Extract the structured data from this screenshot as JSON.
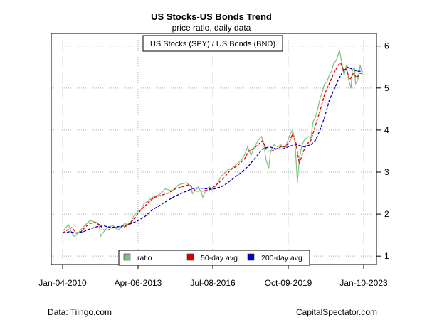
{
  "chart_data": {
    "type": "line",
    "title": "US Stocks-US Bonds Trend",
    "subtitle": "price ratio, daily data",
    "series_label": "US Stocks (SPY) / US Bonds (BND)",
    "xlabel": "",
    "ylabel": "",
    "x_ticks": [
      "Jan-04-2010",
      "Apr-06-2013",
      "Jul-08-2016",
      "Oct-09-2019",
      "Jan-10-2023"
    ],
    "x_range": [
      2010.0,
      2023.35
    ],
    "ylim": [
      0.8,
      6.3
    ],
    "y_ticks": [
      1,
      2,
      3,
      4,
      5,
      6
    ],
    "grid": true,
    "legend": {
      "position": "bottom",
      "entries": [
        {
          "name": "ratio",
          "color": "#7fbf7f",
          "marker": "filled-square"
        },
        {
          "name": "50-day avg",
          "color": "#e00000",
          "marker": "filled-square"
        },
        {
          "name": "200-day avg",
          "color": "#0000c0",
          "marker": "filled-square"
        }
      ]
    },
    "series": [
      {
        "name": "ratio",
        "color": "#7fbf7f",
        "style": "solid",
        "x": [
          2010.0,
          2010.1,
          2010.25,
          2010.4,
          2010.5,
          2010.6,
          2010.75,
          2010.9,
          2011.0,
          2011.2,
          2011.35,
          2011.5,
          2011.6,
          2011.65,
          2011.75,
          2011.9,
          2012.0,
          2012.2,
          2012.4,
          2012.55,
          2012.7,
          2012.8,
          2012.95,
          2013.1,
          2013.25,
          2013.4,
          2013.55,
          2013.7,
          2013.85,
          2014.0,
          2014.15,
          2014.3,
          2014.45,
          2014.6,
          2014.75,
          2014.9,
          2015.05,
          2015.2,
          2015.4,
          2015.6,
          2015.65,
          2015.75,
          2015.9,
          2016.05,
          2016.1,
          2016.25,
          2016.4,
          2016.5,
          2016.6,
          2016.75,
          2016.9,
          2017.0,
          2017.2,
          2017.4,
          2017.6,
          2017.8,
          2017.95,
          2018.05,
          2018.2,
          2018.35,
          2018.5,
          2018.65,
          2018.75,
          2018.85,
          2018.97,
          2019.05,
          2019.2,
          2019.35,
          2019.5,
          2019.6,
          2019.7,
          2019.8,
          2019.9,
          2020.0,
          2020.1,
          2020.17,
          2020.22,
          2020.3,
          2020.4,
          2020.5,
          2020.6,
          2020.7,
          2020.8,
          2020.85,
          2020.9,
          2021.0,
          2021.1,
          2021.2,
          2021.3,
          2021.4,
          2021.5,
          2021.6,
          2021.7,
          2021.8,
          2021.9,
          2022.0,
          2022.05,
          2022.15,
          2022.25,
          2022.35,
          2022.45,
          2022.55,
          2022.6,
          2022.7,
          2022.75,
          2022.85,
          2022.95,
          2023.05
        ],
        "values": [
          1.6,
          1.65,
          1.75,
          1.55,
          1.47,
          1.5,
          1.6,
          1.7,
          1.75,
          1.85,
          1.82,
          1.8,
          1.7,
          1.47,
          1.55,
          1.65,
          1.7,
          1.72,
          1.62,
          1.68,
          1.78,
          1.75,
          1.8,
          1.95,
          2.05,
          2.1,
          2.25,
          2.3,
          2.38,
          2.42,
          2.45,
          2.5,
          2.6,
          2.58,
          2.55,
          2.62,
          2.7,
          2.72,
          2.75,
          2.65,
          2.48,
          2.55,
          2.65,
          2.5,
          2.4,
          2.6,
          2.65,
          2.58,
          2.62,
          2.75,
          2.9,
          2.95,
          3.05,
          3.1,
          3.2,
          3.3,
          3.45,
          3.6,
          3.4,
          3.6,
          3.75,
          3.85,
          3.7,
          3.3,
          3.1,
          3.5,
          3.65,
          3.6,
          3.65,
          3.55,
          3.6,
          3.75,
          3.9,
          4.0,
          3.8,
          3.2,
          2.75,
          3.3,
          3.6,
          3.75,
          3.8,
          3.85,
          3.8,
          4.0,
          4.2,
          4.3,
          4.5,
          4.75,
          4.9,
          5.1,
          5.15,
          5.3,
          5.4,
          5.6,
          5.65,
          5.8,
          5.9,
          5.6,
          5.3,
          5.55,
          5.2,
          5.0,
          5.4,
          5.5,
          5.1,
          5.2,
          5.55,
          5.3
        ]
      },
      {
        "name": "50-day avg",
        "color": "#e00000",
        "style": "dashed",
        "x": [
          2010.0,
          2010.2,
          2010.4,
          2010.6,
          2010.8,
          2011.0,
          2011.2,
          2011.4,
          2011.6,
          2011.8,
          2012.0,
          2012.2,
          2012.4,
          2012.6,
          2012.8,
          2013.0,
          2013.2,
          2013.4,
          2013.6,
          2013.8,
          2014.0,
          2014.3,
          2014.6,
          2014.9,
          2015.2,
          2015.5,
          2015.8,
          2016.1,
          2016.4,
          2016.7,
          2017.0,
          2017.3,
          2017.6,
          2017.9,
          2018.1,
          2018.3,
          2018.5,
          2018.7,
          2018.9,
          2019.1,
          2019.3,
          2019.5,
          2019.7,
          2019.9,
          2020.0,
          2020.15,
          2020.3,
          2020.45,
          2020.6,
          2020.8,
          2021.0,
          2021.2,
          2021.4,
          2021.6,
          2021.8,
          2022.0,
          2022.1,
          2022.2,
          2022.35,
          2022.5,
          2022.65,
          2022.8,
          2022.95,
          2023.05
        ],
        "values": [
          1.55,
          1.62,
          1.68,
          1.55,
          1.58,
          1.7,
          1.78,
          1.8,
          1.75,
          1.62,
          1.62,
          1.68,
          1.68,
          1.68,
          1.72,
          1.82,
          1.95,
          2.1,
          2.2,
          2.32,
          2.4,
          2.45,
          2.5,
          2.6,
          2.65,
          2.7,
          2.55,
          2.55,
          2.58,
          2.7,
          2.85,
          3.05,
          3.15,
          3.3,
          3.5,
          3.55,
          3.65,
          3.75,
          3.5,
          3.5,
          3.55,
          3.6,
          3.6,
          3.75,
          3.9,
          3.7,
          3.2,
          3.45,
          3.65,
          3.75,
          4.1,
          4.45,
          4.85,
          5.1,
          5.35,
          5.55,
          5.6,
          5.45,
          5.45,
          5.2,
          5.35,
          5.25,
          5.35,
          5.35
        ]
      },
      {
        "name": "200-day avg",
        "color": "#0000c0",
        "style": "dashed",
        "x": [
          2010.0,
          2010.3,
          2010.6,
          2010.9,
          2011.2,
          2011.5,
          2011.8,
          2012.1,
          2012.4,
          2012.7,
          2013.0,
          2013.3,
          2013.6,
          2013.9,
          2014.2,
          2014.5,
          2014.8,
          2015.1,
          2015.4,
          2015.7,
          2016.0,
          2016.3,
          2016.6,
          2016.9,
          2017.2,
          2017.5,
          2017.8,
          2018.1,
          2018.4,
          2018.7,
          2019.0,
          2019.3,
          2019.6,
          2019.9,
          2020.2,
          2020.5,
          2020.8,
          2021.0,
          2021.2,
          2021.4,
          2021.6,
          2021.8,
          2022.0,
          2022.2,
          2022.4,
          2022.6,
          2022.8,
          2023.05
        ],
        "values": [
          1.55,
          1.58,
          1.55,
          1.58,
          1.65,
          1.7,
          1.72,
          1.68,
          1.7,
          1.72,
          1.78,
          1.85,
          1.95,
          2.1,
          2.2,
          2.3,
          2.4,
          2.48,
          2.55,
          2.62,
          2.62,
          2.6,
          2.6,
          2.65,
          2.75,
          2.88,
          3.0,
          3.15,
          3.35,
          3.55,
          3.6,
          3.55,
          3.55,
          3.62,
          3.65,
          3.6,
          3.65,
          3.75,
          4.0,
          4.3,
          4.7,
          4.95,
          5.2,
          5.4,
          5.5,
          5.45,
          5.4,
          5.4
        ]
      }
    ]
  },
  "footer": {
    "source": "Data: Tiingo.com",
    "site": "CapitalSpectator.com"
  }
}
